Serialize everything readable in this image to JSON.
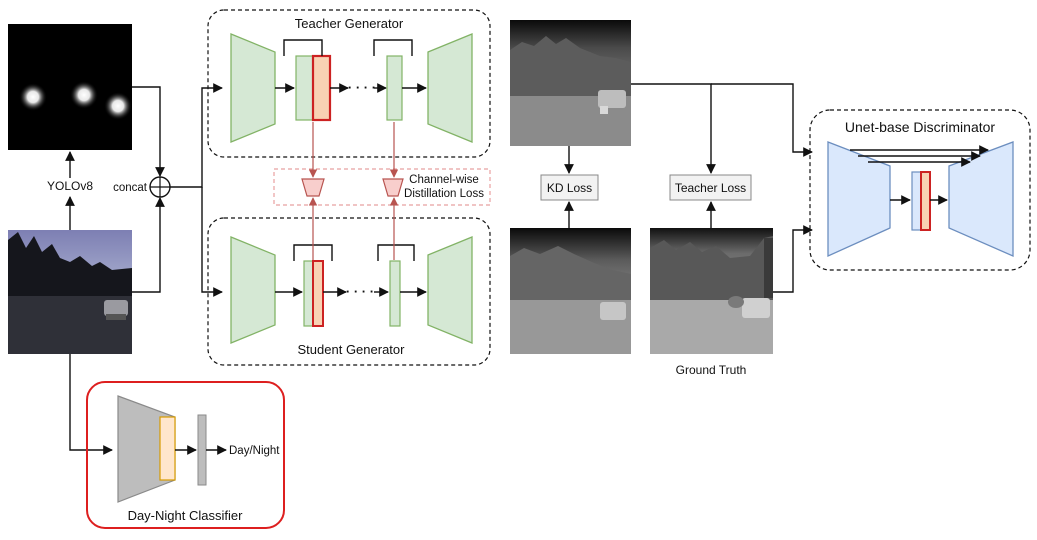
{
  "labels": {
    "teacher_generator": "Teacher Generator",
    "student_generator": "Student Generator",
    "yolo": "YOLOv8",
    "concat": "concat",
    "channel_distill_line1": "Channel-wise",
    "channel_distill_line2": "Distillation Loss",
    "kd_loss": "KD Loss",
    "teacher_loss": "Teacher Loss",
    "ground_truth": "Ground Truth",
    "discriminator": "Unet-base Discriminator",
    "classifier": "Day-Night Classifier",
    "day_night": "Day/Night",
    "ellipsis": "· · · ·"
  },
  "colors": {
    "generator_fill": "#d5e8d4",
    "generator_stroke": "#82b366",
    "highlight_fill": "#f8d2b4",
    "highlight_stroke": "#cc2222",
    "discriminator_fill": "#dae8fc",
    "discriminator_stroke": "#6c8ebf",
    "distill_fill": "#f8cecc",
    "distill_stroke": "#b85450",
    "classifier_border": "#dd1f1f",
    "classifier_body": "#bdbdbd",
    "classifier_feature": "#ffe6cc",
    "classifier_feature_stroke": "#d79b00"
  },
  "images": {
    "heatmap": "heatmap-image",
    "rgb_input": "rgb-night-image",
    "teacher_output": "teacher-thermal-output-image",
    "student_output": "student-thermal-output-image",
    "ground_truth": "ground-truth-thermal-image"
  }
}
